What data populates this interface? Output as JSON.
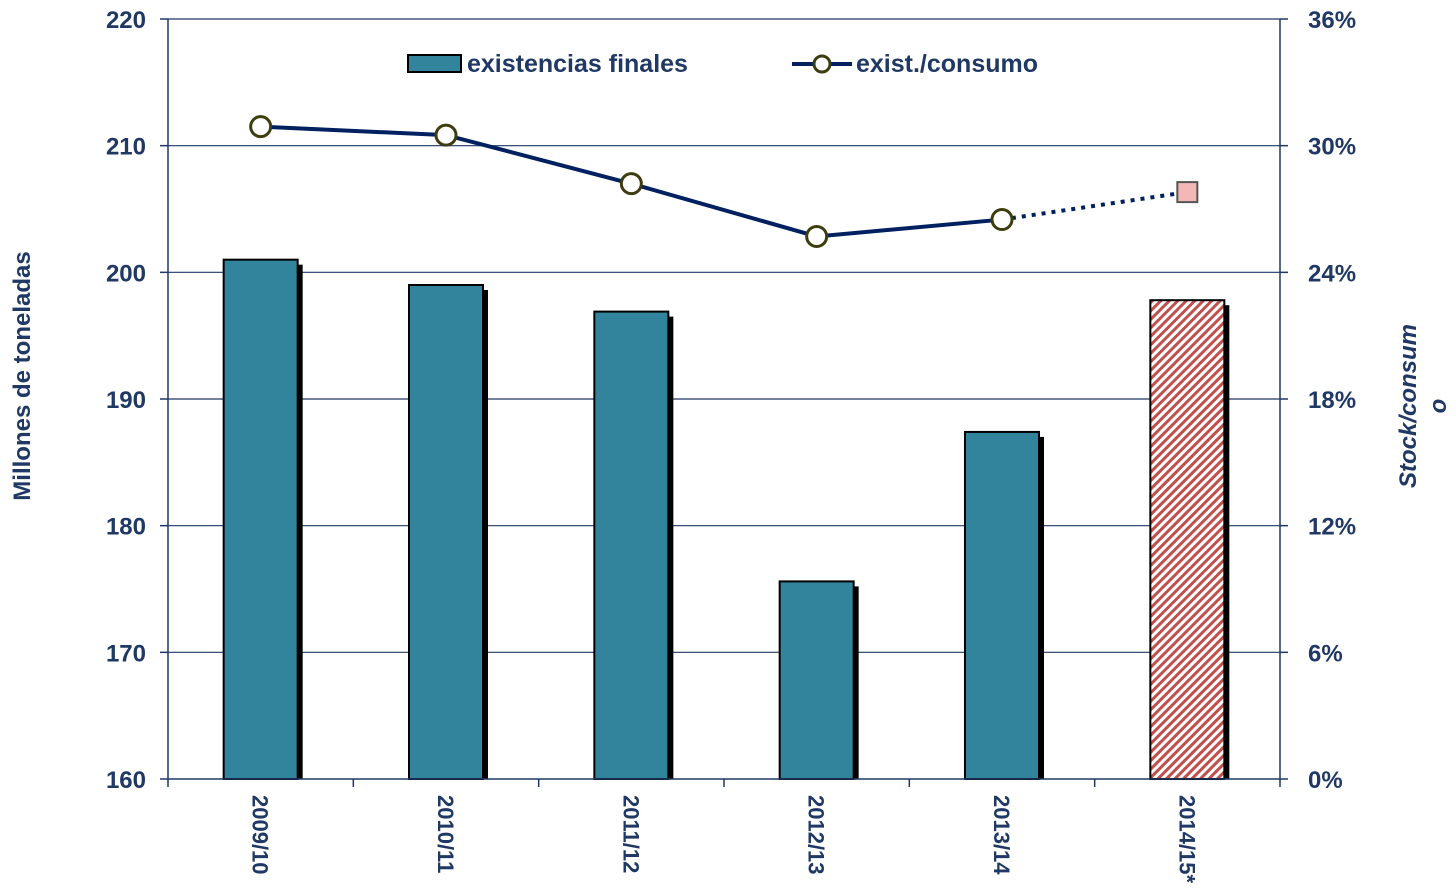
{
  "chart_data": {
    "type": "bar",
    "categories": [
      "2009/10",
      "2010/11",
      "2011/12",
      "2012/13",
      "2013/14",
      "2014/15*"
    ],
    "series": [
      {
        "name": "existencias finales",
        "type": "bar",
        "axis": "left",
        "values": [
          201.0,
          199.0,
          196.9,
          175.6,
          187.4,
          197.8
        ],
        "color": "#31849b",
        "forecast_color": "#c0504d",
        "forecast_from_index": 5
      },
      {
        "name": "exist./consumo",
        "type": "line",
        "axis": "right",
        "values": [
          30.9,
          30.5,
          28.2,
          25.7,
          26.5,
          27.8
        ],
        "color": "#002060",
        "marker_fill": "#ffffff",
        "marker_stroke": "#3d3d10",
        "forecast_marker_fill": "#f2b8b8",
        "forecast_from_index": 5
      }
    ],
    "left_axis": {
      "title": "Millones de toneladas",
      "min": 160,
      "max": 220,
      "step": 10,
      "tick_labels": [
        "160",
        "170",
        "180",
        "190",
        "200",
        "210",
        "220"
      ]
    },
    "right_axis": {
      "title_line1": "Stock/consum",
      "title_line2": "o",
      "min": 0,
      "max": 36,
      "step": 6,
      "tick_labels": [
        "0%",
        "6%",
        "12%",
        "18%",
        "24%",
        "30%",
        "36%"
      ]
    },
    "grid": true,
    "legend": "top"
  }
}
